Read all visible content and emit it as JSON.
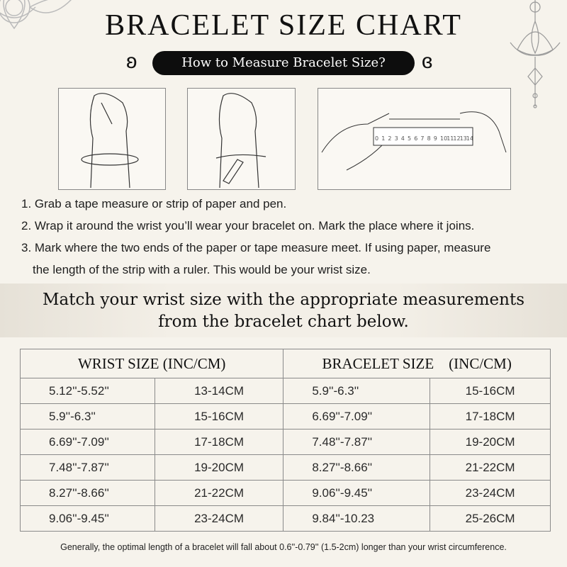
{
  "title": "BRACELET SIZE CHART",
  "subtitle": "How to Measure Bracelet Size?",
  "ruler_numbers": [
    "0",
    "1",
    "2",
    "3",
    "4",
    "5",
    "6",
    "7",
    "8",
    "9",
    "10",
    "11",
    "12",
    "13",
    "14"
  ],
  "steps": [
    "1. Grab a tape measure or strip of paper and pen.",
    "2. Wrap it around the wrist you’ll wear your bracelet on. Mark the place where it joins.",
    "3. Mark where the two ends of the paper or tape measure meet. If using paper, measure",
    "the length of the strip with a ruler. This would be your wrist size."
  ],
  "banner": [
    "Match your wrist size with the appropriate measurements",
    "from the bracelet chart below."
  ],
  "table": {
    "headers": [
      "WRIST SIZE (INC/CM)",
      "BRACELET SIZE (INC/CM)"
    ],
    "rows": [
      [
        "5.12''-5.52''",
        "13-14CM",
        "5.9''-6.3''",
        "15-16CM"
      ],
      [
        "5.9''-6.3''",
        "15-16CM",
        "6.69''-7.09''",
        "17-18CM"
      ],
      [
        "6.69''-7.09''",
        "17-18CM",
        "7.48''-7.87''",
        "19-20CM"
      ],
      [
        "7.48''-7.87''",
        "19-20CM",
        "8.27''-8.66''",
        "21-22CM"
      ],
      [
        "8.27''-8.66''",
        "21-22CM",
        "9.06''-9.45''",
        "23-24CM"
      ],
      [
        "9.06''-9.45''",
        "23-24CM",
        "9.84''-10.23",
        "25-26CM"
      ]
    ]
  },
  "footer": "Generally, the optimal length of a bracelet will fall about 0.6''-0.79'' (1.5-2cm) longer than your wrist circumference."
}
